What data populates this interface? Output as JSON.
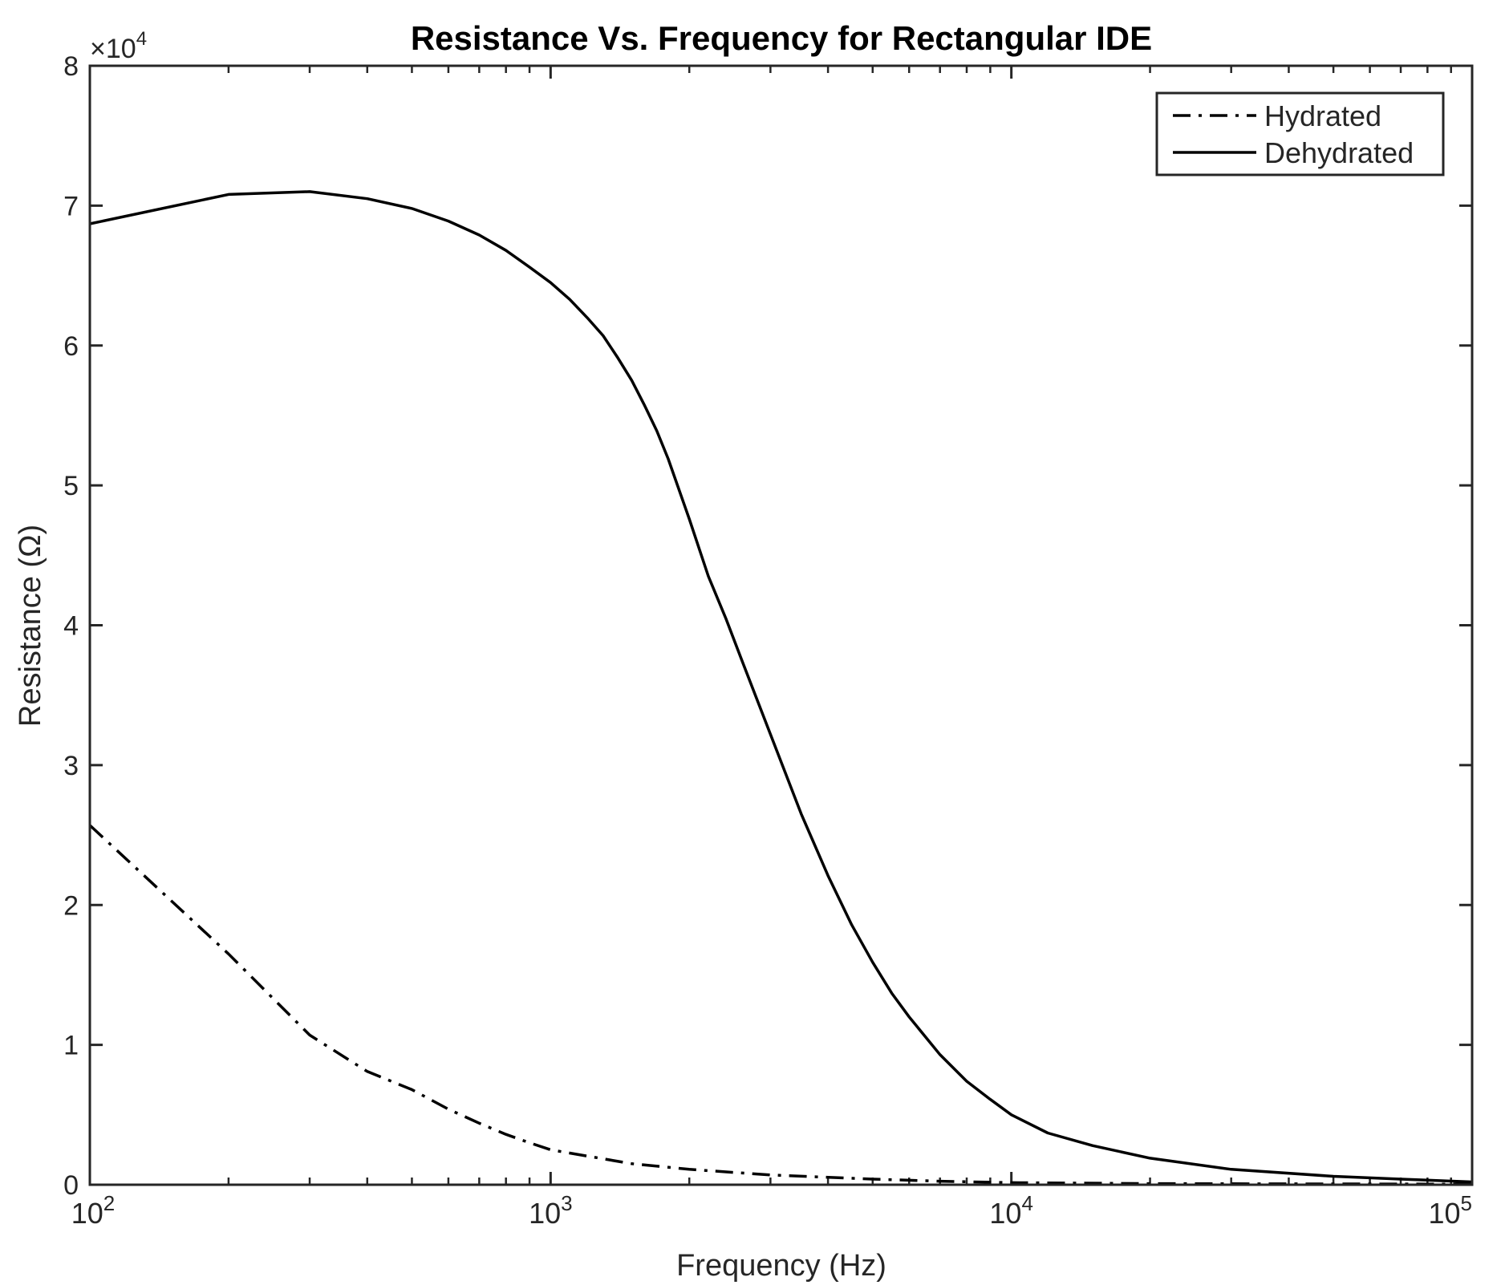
{
  "chart_data": {
    "type": "line",
    "title": "Resistance Vs. Frequency for Rectangular IDE",
    "xlabel": "Frequency (Hz)",
    "ylabel": "Resistance (Ω)",
    "xscale": "log",
    "xlim": [
      100,
      100000
    ],
    "ylim": [
      0,
      80000
    ],
    "y_multiplier_label": {
      "base": "×10",
      "exponent": "4"
    },
    "x_ticks": [
      {
        "value": 100,
        "base": "10",
        "exponent": "2"
      },
      {
        "value": 1000,
        "base": "10",
        "exponent": "3"
      },
      {
        "value": 10000,
        "base": "10",
        "exponent": "4"
      },
      {
        "value": 100000,
        "base": "10",
        "exponent": "5"
      }
    ],
    "y_ticks": [
      {
        "value": 0,
        "label": "0"
      },
      {
        "value": 10000,
        "label": "1"
      },
      {
        "value": 20000,
        "label": "2"
      },
      {
        "value": 30000,
        "label": "3"
      },
      {
        "value": 40000,
        "label": "4"
      },
      {
        "value": 50000,
        "label": "5"
      },
      {
        "value": 60000,
        "label": "6"
      },
      {
        "value": 70000,
        "label": "7"
      },
      {
        "value": 80000,
        "label": "8"
      }
    ],
    "legend_position": "top-right",
    "series": [
      {
        "name": "Hydrated",
        "style": "dash-dot",
        "x": [
          100,
          200,
          300,
          400,
          500,
          600,
          700,
          800,
          900,
          1000,
          1500,
          2000,
          3000,
          5000,
          7000,
          10000,
          20000,
          50000,
          100000
        ],
        "values": [
          25700,
          16500,
          10700,
          8100,
          6800,
          5400,
          4400,
          3600,
          3000,
          2500,
          1500,
          1100,
          700,
          400,
          250,
          150,
          80,
          60,
          40
        ]
      },
      {
        "name": "Dehydrated",
        "style": "solid",
        "x": [
          100,
          200,
          300,
          400,
          500,
          600,
          700,
          800,
          900,
          1000,
          1100,
          1200,
          1300,
          1400,
          1500,
          1600,
          1700,
          1800,
          2000,
          2200,
          2400,
          2600,
          3000,
          3500,
          4000,
          4500,
          5000,
          5500,
          6000,
          7000,
          8000,
          9000,
          10000,
          12000,
          15000,
          20000,
          30000,
          50000,
          70000,
          100000
        ],
        "values": [
          68700,
          70800,
          71000,
          70500,
          69800,
          68900,
          67900,
          66800,
          65600,
          64500,
          63300,
          62000,
          60700,
          59100,
          57500,
          55700,
          53900,
          51900,
          47600,
          43500,
          40500,
          37500,
          32200,
          26500,
          22100,
          18600,
          15900,
          13700,
          12000,
          9300,
          7400,
          6100,
          5000,
          3700,
          2800,
          1900,
          1100,
          600,
          400,
          200
        ]
      }
    ]
  }
}
